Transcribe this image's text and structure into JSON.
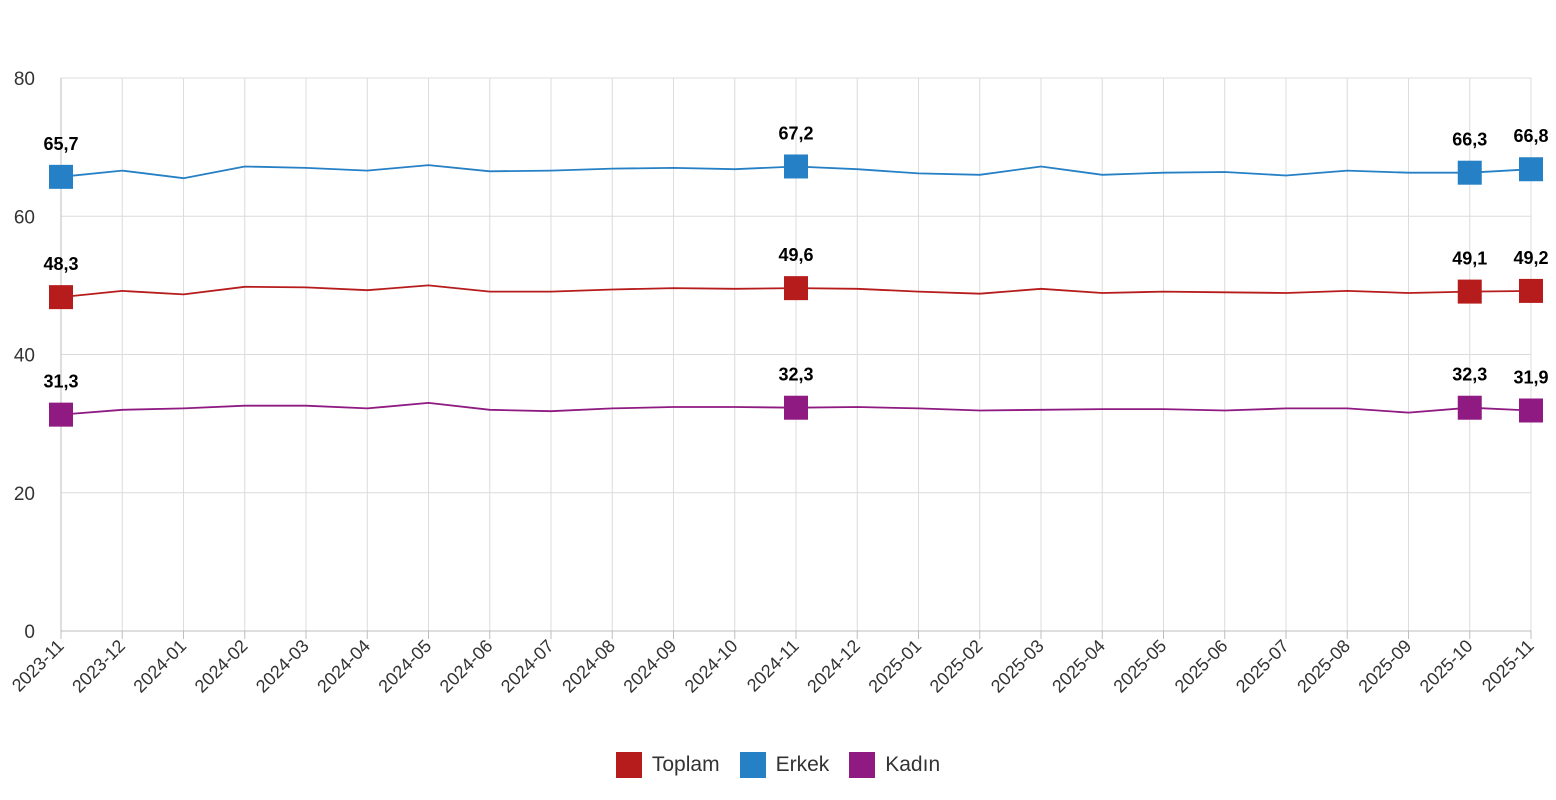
{
  "chart_data": {
    "type": "line",
    "title": "",
    "xlabel": "",
    "ylabel": "",
    "ylim": [
      0,
      80
    ],
    "yticks": [
      0,
      20,
      40,
      60,
      80
    ],
    "grid": true,
    "legend_position": "bottom-center",
    "categories": [
      "2023-11",
      "2023-12",
      "2024-01",
      "2024-02",
      "2024-03",
      "2024-04",
      "2024-05",
      "2024-06",
      "2024-07",
      "2024-08",
      "2024-09",
      "2024-10",
      "2024-11",
      "2024-12",
      "2025-01",
      "2025-02",
      "2025-03",
      "2025-04",
      "2025-05",
      "2025-06",
      "2025-07",
      "2025-08",
      "2025-09",
      "2025-10",
      "2025-11"
    ],
    "series": [
      {
        "name": "Toplam",
        "color": "#b71c1c",
        "values": [
          48.3,
          49.2,
          48.7,
          49.8,
          49.7,
          49.3,
          50.0,
          49.1,
          49.1,
          49.4,
          49.6,
          49.5,
          49.6,
          49.5,
          49.1,
          48.8,
          49.5,
          48.9,
          49.1,
          49.0,
          48.9,
          49.2,
          48.9,
          49.1,
          49.2
        ],
        "labeled": [
          {
            "index": 0,
            "text": "48,3"
          },
          {
            "index": 12,
            "text": "49,6"
          },
          {
            "index": 23,
            "text": "49,1"
          },
          {
            "index": 24,
            "text": "49,2"
          }
        ]
      },
      {
        "name": "Erkek",
        "color": "#2680c5",
        "values": [
          65.7,
          66.6,
          65.5,
          67.2,
          67.0,
          66.6,
          67.4,
          66.5,
          66.6,
          66.9,
          67.0,
          66.8,
          67.2,
          66.8,
          66.2,
          66.0,
          67.2,
          66.0,
          66.3,
          66.4,
          65.9,
          66.6,
          66.3,
          66.3,
          66.8
        ],
        "labeled": [
          {
            "index": 0,
            "text": "65,7"
          },
          {
            "index": 12,
            "text": "67,2"
          },
          {
            "index": 23,
            "text": "66,3"
          },
          {
            "index": 24,
            "text": "66,8"
          }
        ]
      },
      {
        "name": "Kadın",
        "color": "#8e1a82",
        "values": [
          31.3,
          32.0,
          32.2,
          32.6,
          32.6,
          32.2,
          33.0,
          32.0,
          31.8,
          32.2,
          32.4,
          32.4,
          32.3,
          32.4,
          32.2,
          31.9,
          32.0,
          32.1,
          32.1,
          31.9,
          32.2,
          32.2,
          31.6,
          32.3,
          31.9
        ],
        "labeled": [
          {
            "index": 0,
            "text": "31,3"
          },
          {
            "index": 12,
            "text": "32,3"
          },
          {
            "index": 23,
            "text": "32,3"
          },
          {
            "index": 24,
            "text": "31,9"
          }
        ]
      }
    ]
  }
}
